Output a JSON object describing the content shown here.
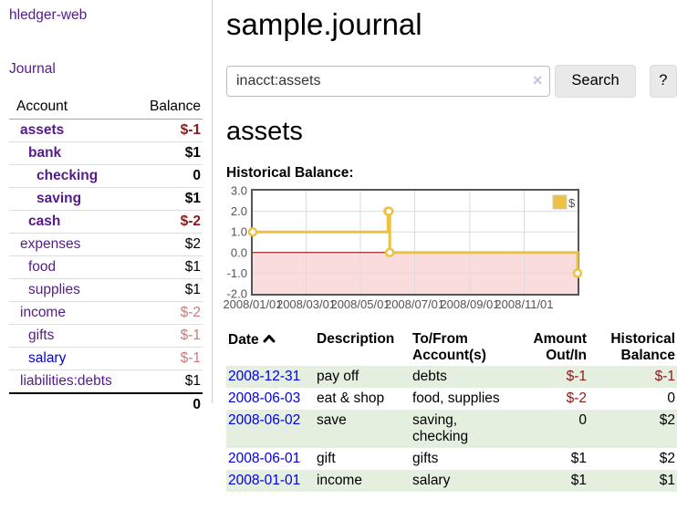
{
  "colors": {
    "purple": "#551a8b",
    "blue": "#0000dd",
    "neg-dark": "#8b1a1a",
    "neg-light": "#c97b7b",
    "row-green": "#e4efdf",
    "chart-gold": "#edc240"
  },
  "app": {
    "brand": "hledger-web",
    "nav_journal": "Journal"
  },
  "sidebar": {
    "headers": {
      "account": "Account",
      "balance": "Balance"
    },
    "accounts": [
      {
        "name": "assets",
        "balance": "$-1"
      },
      {
        "name": "bank",
        "balance": "$1"
      },
      {
        "name": "checking",
        "balance": "0"
      },
      {
        "name": "saving",
        "balance": "$1"
      },
      {
        "name": "cash",
        "balance": "$-2"
      },
      {
        "name": "expenses",
        "balance": "$2"
      },
      {
        "name": "food",
        "balance": "$1"
      },
      {
        "name": "supplies",
        "balance": "$1"
      },
      {
        "name": "income",
        "balance": "$-2"
      },
      {
        "name": "gifts",
        "balance": "$-1"
      },
      {
        "name": "salary",
        "balance": "$-1"
      },
      {
        "name": "liabilities:debts",
        "balance": "$1"
      }
    ],
    "total": "0"
  },
  "header": {
    "title": "sample.journal"
  },
  "search": {
    "value": "inacct:assets",
    "clear_icon": "×",
    "button_label": "Search",
    "help_label": "?"
  },
  "account_page": {
    "title": "assets",
    "chart_label": "Historical Balance:"
  },
  "chart_data": {
    "type": "line",
    "style": "step-after",
    "title": "Historical Balance:",
    "series": [
      {
        "name": "$",
        "color": "#edc240",
        "points": [
          [
            "2008-01-01",
            1
          ],
          [
            "2008-06-01",
            2
          ],
          [
            "2008-06-02",
            2
          ],
          [
            "2008-06-03",
            0
          ],
          [
            "2008-12-31",
            -1
          ]
        ]
      }
    ],
    "xlim": [
      "2008-01-01",
      "2008-12-31"
    ],
    "ylim": [
      -2,
      3
    ],
    "x_ticks": [
      "2008/01/01",
      "2008/03/01",
      "2008/05/01",
      "2008/07/01",
      "2008/09/01",
      "2008/11/01"
    ],
    "y_ticks": [
      "3.0",
      "2.0",
      "1.0",
      "0.0",
      "-1.0",
      "-2.0"
    ],
    "legend_position": "top-right",
    "grid_on": true,
    "grid_color": "#dcdcdc",
    "border_color": "#555555",
    "zero_line_color": "#8b0000",
    "negative_fill": "#fadcdc",
    "tick_label_color": "#545454"
  },
  "register": {
    "headers": {
      "date": "Date",
      "description": "Description",
      "accounts": "To/From Account(s)",
      "amount": "Amount Out/In",
      "balance": "Historical Balance"
    },
    "rows": [
      {
        "date": "2008-12-31",
        "description": "pay off",
        "accounts": "debts",
        "amount": "$-1",
        "balance": "$-1"
      },
      {
        "date": "2008-06-03",
        "description": "eat & shop",
        "accounts": "food, supplies",
        "amount": "$-2",
        "balance": "0"
      },
      {
        "date": "2008-06-02",
        "description": "save",
        "accounts": "saving, checking",
        "amount": "0",
        "balance": "$2"
      },
      {
        "date": "2008-06-01",
        "description": "gift",
        "accounts": "gifts",
        "amount": "$1",
        "balance": "$2"
      },
      {
        "date": "2008-01-01",
        "description": "income",
        "accounts": "salary",
        "amount": "$1",
        "balance": "$1"
      }
    ]
  }
}
